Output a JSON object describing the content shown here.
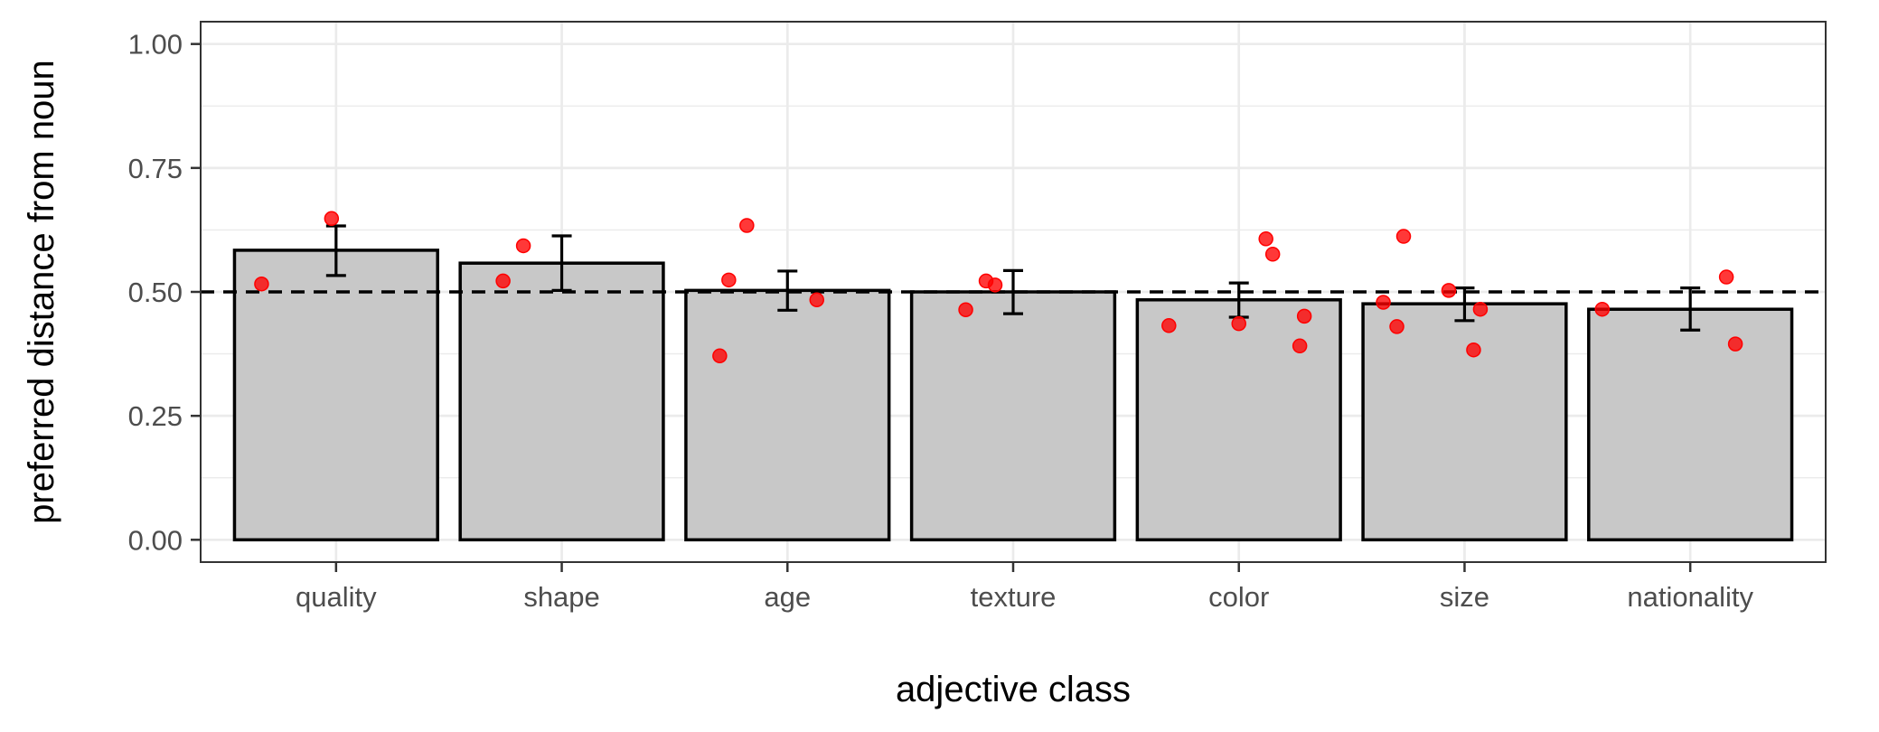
{
  "chart_data": {
    "type": "bar",
    "xlabel": "adjective class",
    "ylabel": "preferred distance from noun",
    "categories": [
      "quality",
      "shape",
      "age",
      "texture",
      "color",
      "size",
      "nationality"
    ],
    "values": [
      0.584,
      0.558,
      0.503,
      0.5,
      0.484,
      0.476,
      0.465
    ],
    "error_bars": [
      {
        "low": 0.533,
        "high": 0.633
      },
      {
        "low": 0.503,
        "high": 0.613
      },
      {
        "low": 0.463,
        "high": 0.542
      },
      {
        "low": 0.456,
        "high": 0.543
      },
      {
        "low": 0.449,
        "high": 0.518
      },
      {
        "low": 0.442,
        "high": 0.508
      },
      {
        "low": 0.423,
        "high": 0.508
      }
    ],
    "points": [
      {
        "category": "quality",
        "jitter": -0.33,
        "y": 0.516
      },
      {
        "category": "quality",
        "jitter": -0.02,
        "y": 0.648
      },
      {
        "category": "shape",
        "jitter": -0.26,
        "y": 0.522
      },
      {
        "category": "shape",
        "jitter": -0.17,
        "y": 0.593
      },
      {
        "category": "age",
        "jitter": -0.3,
        "y": 0.371
      },
      {
        "category": "age",
        "jitter": -0.26,
        "y": 0.524
      },
      {
        "category": "age",
        "jitter": -0.18,
        "y": 0.634
      },
      {
        "category": "age",
        "jitter": 0.13,
        "y": 0.484
      },
      {
        "category": "texture",
        "jitter": -0.21,
        "y": 0.464
      },
      {
        "category": "texture",
        "jitter": -0.12,
        "y": 0.522
      },
      {
        "category": "texture",
        "jitter": -0.08,
        "y": 0.514
      },
      {
        "category": "color",
        "jitter": -0.31,
        "y": 0.432
      },
      {
        "category": "color",
        "jitter": 0.0,
        "y": 0.436
      },
      {
        "category": "color",
        "jitter": 0.12,
        "y": 0.607
      },
      {
        "category": "color",
        "jitter": 0.15,
        "y": 0.576
      },
      {
        "category": "color",
        "jitter": 0.27,
        "y": 0.391
      },
      {
        "category": "color",
        "jitter": 0.29,
        "y": 0.451
      },
      {
        "category": "size",
        "jitter": -0.36,
        "y": 0.479
      },
      {
        "category": "size",
        "jitter": -0.3,
        "y": 0.43
      },
      {
        "category": "size",
        "jitter": -0.27,
        "y": 0.612
      },
      {
        "category": "size",
        "jitter": -0.07,
        "y": 0.503
      },
      {
        "category": "size",
        "jitter": 0.04,
        "y": 0.383
      },
      {
        "category": "size",
        "jitter": 0.07,
        "y": 0.465
      },
      {
        "category": "nationality",
        "jitter": -0.39,
        "y": 0.465
      },
      {
        "category": "nationality",
        "jitter": 0.16,
        "y": 0.53
      },
      {
        "category": "nationality",
        "jitter": 0.2,
        "y": 0.395
      }
    ],
    "reference_line": 0.5,
    "ylim": [
      -0.045,
      1.045
    ],
    "yticks": [
      0,
      0.25,
      0.5,
      0.75,
      1
    ],
    "ytick_labels": [
      "0.00",
      "0.25",
      "0.50",
      "0.75",
      "1.00"
    ],
    "grid": true,
    "colors": {
      "bar_fill": "#c8c8c8",
      "bar_stroke": "#000000",
      "point": "#ff0000",
      "grid": "#ebebeb",
      "panel_border": "#333333",
      "tick_text": "#4d4d4d"
    }
  }
}
